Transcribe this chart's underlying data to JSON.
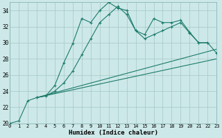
{
  "xlabel": "Humidex (Indice chaleur)",
  "bg_color": "#cde8e8",
  "grid_color": "#aacccc",
  "line_color": "#1a7a6a",
  "xmin": 0,
  "xmax": 23,
  "ymin": 20,
  "ymax": 35,
  "yticks": [
    20,
    22,
    24,
    26,
    28,
    30,
    32,
    34
  ],
  "xticks": [
    0,
    1,
    2,
    3,
    4,
    5,
    6,
    7,
    8,
    9,
    10,
    11,
    12,
    13,
    14,
    15,
    16,
    17,
    18,
    19,
    20,
    21,
    22,
    23
  ],
  "series1_x": [
    0,
    1,
    2,
    3,
    4,
    5,
    6,
    7,
    8,
    9,
    10,
    11,
    12,
    13,
    14,
    15,
    16,
    17,
    18,
    19,
    20,
    21,
    22
  ],
  "series1_y": [
    20,
    20.3,
    22.8,
    23.2,
    23.4,
    24.7,
    27.5,
    29.9,
    33.0,
    32.5,
    34.0,
    35.0,
    34.3,
    34.0,
    31.5,
    31.0,
    33.0,
    32.5,
    32.5,
    32.8,
    31.3,
    30.0,
    30.0
  ],
  "series2_x": [
    3,
    4,
    5,
    6,
    7,
    8,
    9,
    10,
    11,
    12,
    13,
    14,
    15,
    16,
    17,
    18,
    19,
    20,
    21,
    22,
    23
  ],
  "series2_y": [
    23.2,
    23.4,
    24.0,
    25.0,
    26.5,
    28.5,
    30.5,
    32.5,
    33.5,
    34.5,
    33.5,
    31.5,
    30.5,
    31.0,
    31.5,
    32.0,
    32.5,
    31.2,
    30.0,
    30.0,
    28.7
  ],
  "series3_x": [
    3,
    23
  ],
  "series3_y": [
    23.2,
    28.0
  ],
  "series4_x": [
    3,
    23
  ],
  "series4_y": [
    23.2,
    29.2
  ]
}
